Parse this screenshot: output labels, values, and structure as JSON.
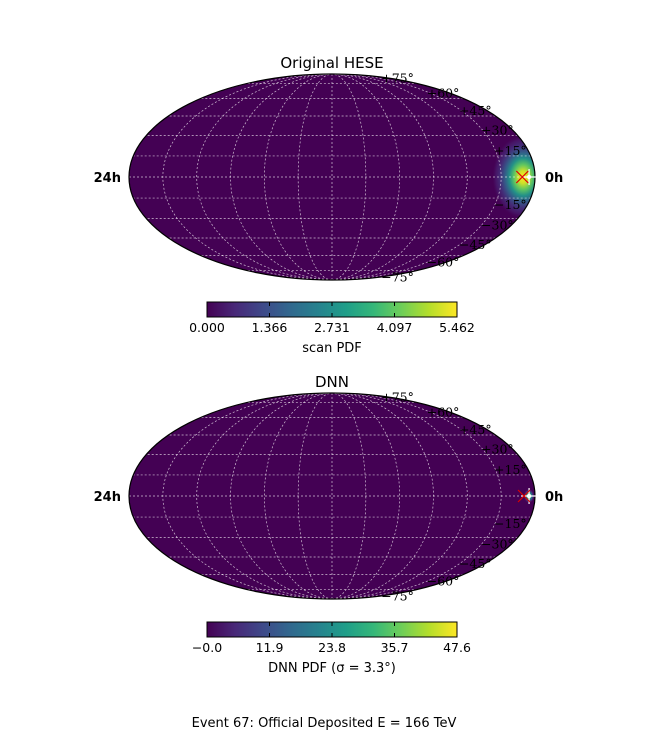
{
  "chart_data": [
    {
      "type": "heatmap",
      "projection": "mollweide",
      "title": "Original HESE",
      "ra_labels": {
        "left": "24h",
        "right": "0h"
      },
      "lat_labels": [
        "+75°",
        "+60°",
        "+45°",
        "+30°",
        "+15°",
        "−15°",
        "−30°",
        "−45°",
        "−60°",
        "−75°"
      ],
      "colorbar": {
        "label": "scan PDF",
        "range": [
          0.0,
          5.462
        ],
        "ticks": [
          "0.000",
          "1.366",
          "2.731",
          "4.097",
          "5.462"
        ],
        "colormap": "viridis"
      },
      "hotspot": {
        "ra_hours": 23.3,
        "dec_deg": 0,
        "peak": 5.462,
        "spread_deg": 20
      },
      "markers": [
        {
          "type": "star",
          "ra_hours": 23.65,
          "dec_deg": 0,
          "color": "#ffffff"
        },
        {
          "type": "x",
          "ra_hours": 23.25,
          "dec_deg": 0,
          "color": "#dd0000"
        }
      ],
      "grid": true
    },
    {
      "type": "heatmap",
      "projection": "mollweide",
      "title": "DNN",
      "ra_labels": {
        "left": "24h",
        "right": "0h"
      },
      "lat_labels": [
        "+75°",
        "+60°",
        "+45°",
        "+30°",
        "+15°",
        "−15°",
        "−30°",
        "−45°",
        "−60°",
        "−75°"
      ],
      "colorbar": {
        "label": "DNN PDF (σ = 3.3°)",
        "range": [
          0.0,
          47.6
        ],
        "ticks": [
          "−0.0",
          "11.9",
          "23.8",
          "35.7",
          "47.6"
        ],
        "colormap": "viridis"
      },
      "hotspot": {
        "ra_hours": 23.65,
        "dec_deg": 0,
        "peak": 47.6,
        "spread_deg": 3.3
      },
      "markers": [
        {
          "type": "star",
          "ra_hours": 23.65,
          "dec_deg": 0,
          "color": "#ffffff"
        },
        {
          "type": "x",
          "ra_hours": 23.35,
          "dec_deg": 0,
          "color": "#dd0000"
        }
      ],
      "grid": true
    }
  ],
  "caption": "Event 67:  Official Deposited E = 166 TeV"
}
